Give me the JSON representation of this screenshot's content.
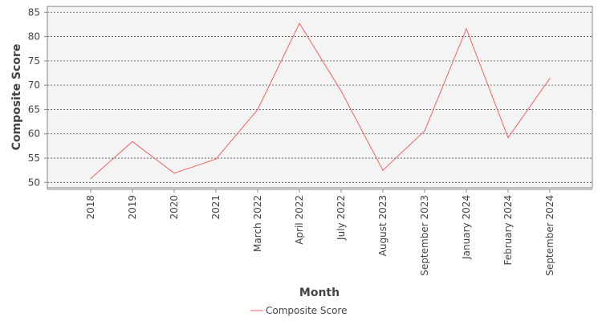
{
  "chart_data": {
    "type": "line",
    "categories": [
      "2018",
      "2019",
      "2020",
      "2021",
      "March 2022",
      "April 2022",
      "July 2022",
      "August 2023",
      "September 2023",
      "January 2024",
      "February 2024",
      "September 2024"
    ],
    "series": [
      {
        "name": "Composite Score",
        "color": "#f06464",
        "values": [
          50.8,
          58.4,
          51.9,
          54.8,
          65.0,
          82.7,
          68.8,
          52.5,
          60.6,
          81.6,
          59.2,
          71.4
        ]
      }
    ],
    "xlabel": "Month",
    "ylabel": "Composite Score",
    "ylim": [
      48.9,
      86.2
    ],
    "yticks": [
      50,
      55,
      60,
      65,
      70,
      75,
      80,
      85
    ],
    "grid": true,
    "legend_position": "bottom-center"
  }
}
